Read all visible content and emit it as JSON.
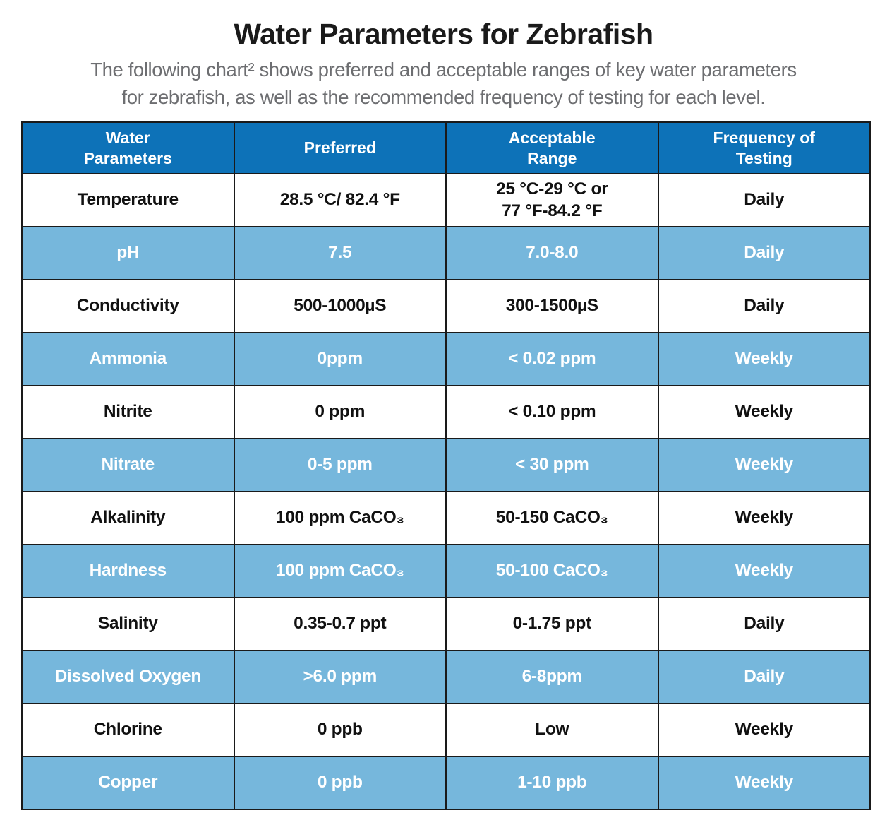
{
  "page": {
    "title": "Water Parameters for Zebrafish",
    "subtitle": "The following chart² shows preferred and acceptable ranges of key water parameters\nfor zebrafish, as well as the recommended frequency of testing for each level."
  },
  "colors": {
    "header_row_bg": "#0d72b8",
    "alt_row_bg": "#76b7dc",
    "header_text": "#ffffff",
    "body_text": "#111111",
    "subtitle_text": "#6d6e71",
    "grid_border": "#1a1a1a"
  },
  "table": {
    "headers": [
      "Water\nParameters",
      "Preferred",
      "Acceptable\nRange",
      "Frequency of\nTesting"
    ],
    "rows": [
      {
        "parameter": "Temperature",
        "preferred": "28.5 °C/ 82.4 °F",
        "acceptable": "25 °C-29 °C or\n77 °F-84.2 °F",
        "frequency": "Daily"
      },
      {
        "parameter": "pH",
        "preferred": "7.5",
        "acceptable": "7.0-8.0",
        "frequency": "Daily"
      },
      {
        "parameter": "Conductivity",
        "preferred": "500-1000µS",
        "acceptable": "300-1500µS",
        "frequency": "Daily"
      },
      {
        "parameter": "Ammonia",
        "preferred": "0ppm",
        "acceptable": "< 0.02 ppm",
        "frequency": "Weekly"
      },
      {
        "parameter": "Nitrite",
        "preferred": "0 ppm",
        "acceptable": "< 0.10 ppm",
        "frequency": "Weekly"
      },
      {
        "parameter": "Nitrate",
        "preferred": "0-5 ppm",
        "acceptable": "< 30 ppm",
        "frequency": "Weekly"
      },
      {
        "parameter": "Alkalinity",
        "preferred": "100 ppm CaCO₃",
        "acceptable": "50-150 CaCO₃",
        "frequency": "Weekly"
      },
      {
        "parameter": "Hardness",
        "preferred": "100 ppm CaCO₃",
        "acceptable": "50-100 CaCO₃",
        "frequency": "Weekly"
      },
      {
        "parameter": "Salinity",
        "preferred": "0.35-0.7 ppt",
        "acceptable": "0-1.75 ppt",
        "frequency": "Daily"
      },
      {
        "parameter": "Dissolved Oxygen",
        "preferred": ">6.0 ppm",
        "acceptable": "6-8ppm",
        "frequency": "Daily"
      },
      {
        "parameter": "Chlorine",
        "preferred": "0 ppb",
        "acceptable": "Low",
        "frequency": "Weekly"
      },
      {
        "parameter": "Copper",
        "preferred": "0 ppb",
        "acceptable": "1-10 ppb",
        "frequency": "Weekly"
      }
    ]
  },
  "chart_data": {
    "type": "table",
    "title": "Water Parameters for Zebrafish",
    "subtitle": "The following chart² shows preferred and acceptable ranges of key water parameters for zebrafish, as well as the recommended frequency of testing for each level.",
    "columns": [
      "Water Parameters",
      "Preferred",
      "Acceptable Range",
      "Frequency of Testing"
    ],
    "rows": [
      [
        "Temperature",
        "28.5 °C/ 82.4 °F",
        "25 °C-29 °C or 77 °F-84.2 °F",
        "Daily"
      ],
      [
        "pH",
        "7.5",
        "7.0-8.0",
        "Daily"
      ],
      [
        "Conductivity",
        "500-1000µS",
        "300-1500µS",
        "Daily"
      ],
      [
        "Ammonia",
        "0ppm",
        "< 0.02 ppm",
        "Weekly"
      ],
      [
        "Nitrite",
        "0 ppm",
        "< 0.10 ppm",
        "Weekly"
      ],
      [
        "Nitrate",
        "0-5 ppm",
        "< 30 ppm",
        "Weekly"
      ],
      [
        "Alkalinity",
        "100 ppm CaCO₃",
        "50-150 CaCO₃",
        "Weekly"
      ],
      [
        "Hardness",
        "100 ppm CaCO₃",
        "50-100 CaCO₃",
        "Weekly"
      ],
      [
        "Salinity",
        "0.35-0.7 ppt",
        "0-1.75 ppt",
        "Daily"
      ],
      [
        "Dissolved Oxygen",
        ">6.0 ppm",
        "6-8ppm",
        "Daily"
      ],
      [
        "Chlorine",
        "0 ppb",
        "Low",
        "Weekly"
      ],
      [
        "Copper",
        "0 ppb",
        "1-10 ppb",
        "Weekly"
      ]
    ],
    "layout": {
      "striped": "alternating white and light blue rows starting with white",
      "header_style": "dark blue background, white bold text",
      "grid": true
    }
  }
}
